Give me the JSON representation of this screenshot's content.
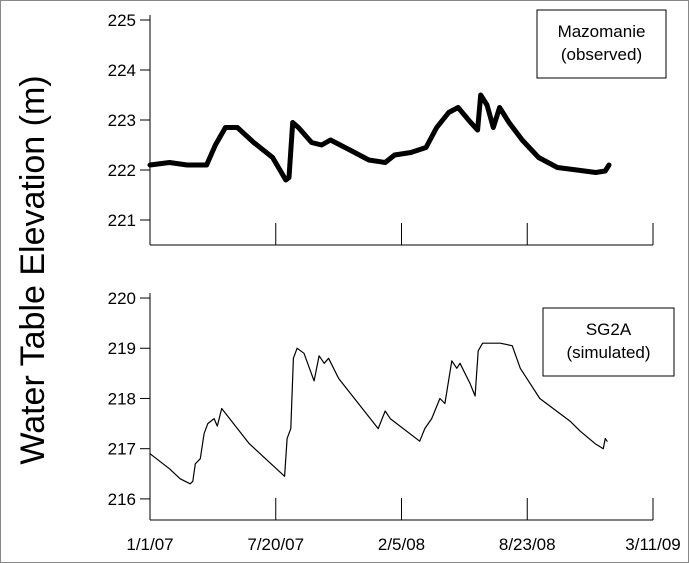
{
  "chart_data": [
    {
      "type": "line",
      "ylabel": "Water Table Elevation (m)",
      "annotation": [
        "Mazomanie",
        "(observed)"
      ],
      "ylim": [
        220.5,
        225.1
      ],
      "yticks": [
        221,
        222,
        223,
        224,
        225
      ],
      "line_width": 5,
      "x": [
        "2007-01-01",
        "2007-02-01",
        "2007-03-01",
        "2007-04-01",
        "2007-04-15",
        "2007-05-01",
        "2007-05-20",
        "2007-06-15",
        "2007-07-15",
        "2007-08-05",
        "2007-08-10",
        "2007-08-16",
        "2007-08-25",
        "2007-09-15",
        "2007-10-01",
        "2007-10-15",
        "2007-11-15",
        "2007-12-15",
        "2008-01-10",
        "2008-01-25",
        "2008-02-20",
        "2008-03-15",
        "2008-04-01",
        "2008-04-20",
        "2008-05-05",
        "2008-05-25",
        "2008-06-05",
        "2008-06-10",
        "2008-06-20",
        "2008-06-30",
        "2008-07-10",
        "2008-07-25",
        "2008-08-15",
        "2008-09-10",
        "2008-10-10",
        "2008-11-10",
        "2008-12-10",
        "2008-12-25",
        "2008-12-31"
      ],
      "series": [
        {
          "color": "#000000",
          "values": [
            222.1,
            222.15,
            222.1,
            222.1,
            222.5,
            222.85,
            222.85,
            222.55,
            222.25,
            221.8,
            221.85,
            222.95,
            222.85,
            222.55,
            222.5,
            222.6,
            222.4,
            222.2,
            222.15,
            222.3,
            222.35,
            222.45,
            222.85,
            223.15,
            223.25,
            222.95,
            222.8,
            223.5,
            223.3,
            222.85,
            223.25,
            222.95,
            222.6,
            222.25,
            222.05,
            222.0,
            221.95,
            221.98,
            222.1
          ]
        }
      ]
    },
    {
      "type": "line",
      "annotation": [
        "SG2A",
        "(simulated)"
      ],
      "xlim": [
        "2007-01-01",
        "2009-03-11"
      ],
      "xticks": [
        {
          "value": "2007-01-01",
          "label": "1/1/07"
        },
        {
          "value": "2007-07-20",
          "label": "7/20/07"
        },
        {
          "value": "2008-02-05",
          "label": "2/5/08"
        },
        {
          "value": "2008-08-23",
          "label": "8/23/08"
        },
        {
          "value": "2009-03-11",
          "label": "3/11/09"
        }
      ],
      "ylim": [
        215.58,
        220.1
      ],
      "yticks": [
        216,
        217,
        218,
        219,
        220
      ],
      "line_width": 1.2,
      "x": [
        "2007-01-01",
        "2007-02-01",
        "2007-02-18",
        "2007-03-06",
        "2007-03-10",
        "2007-03-14",
        "2007-03-22",
        "2007-03-28",
        "2007-04-03",
        "2007-04-13",
        "2007-04-18",
        "2007-04-25",
        "2007-06-08",
        "2007-08-03",
        "2007-08-07",
        "2007-08-13",
        "2007-08-17",
        "2007-08-23",
        "2007-09-03",
        "2007-09-19",
        "2007-09-27",
        "2007-10-05",
        "2007-10-12",
        "2007-10-28",
        "2007-12-30",
        "2008-01-10",
        "2008-01-18",
        "2008-03-05",
        "2008-03-13",
        "2008-03-24",
        "2008-04-06",
        "2008-04-14",
        "2008-04-25",
        "2008-05-03",
        "2008-05-08",
        "2008-05-24",
        "2008-06-01",
        "2008-06-06",
        "2008-06-13",
        "2008-07-11",
        "2008-07-30",
        "2008-08-12",
        "2008-09-12",
        "2008-10-30",
        "2008-11-15",
        "2008-12-09",
        "2008-12-22",
        "2008-12-25",
        "2008-12-28"
      ],
      "series": [
        {
          "color": "#000000",
          "values": [
            216.9,
            216.6,
            216.4,
            216.3,
            216.35,
            216.7,
            216.8,
            217.3,
            217.5,
            217.6,
            217.45,
            217.8,
            217.1,
            216.45,
            217.2,
            217.4,
            218.8,
            219.0,
            218.9,
            218.35,
            218.85,
            218.7,
            218.8,
            218.4,
            217.4,
            217.75,
            217.6,
            217.15,
            217.4,
            217.6,
            218.0,
            217.9,
            218.75,
            218.6,
            218.7,
            218.3,
            218.05,
            218.95,
            219.1,
            219.1,
            219.05,
            218.6,
            218.0,
            217.55,
            217.35,
            217.1,
            217.0,
            217.2,
            217.15
          ]
        }
      ]
    }
  ]
}
